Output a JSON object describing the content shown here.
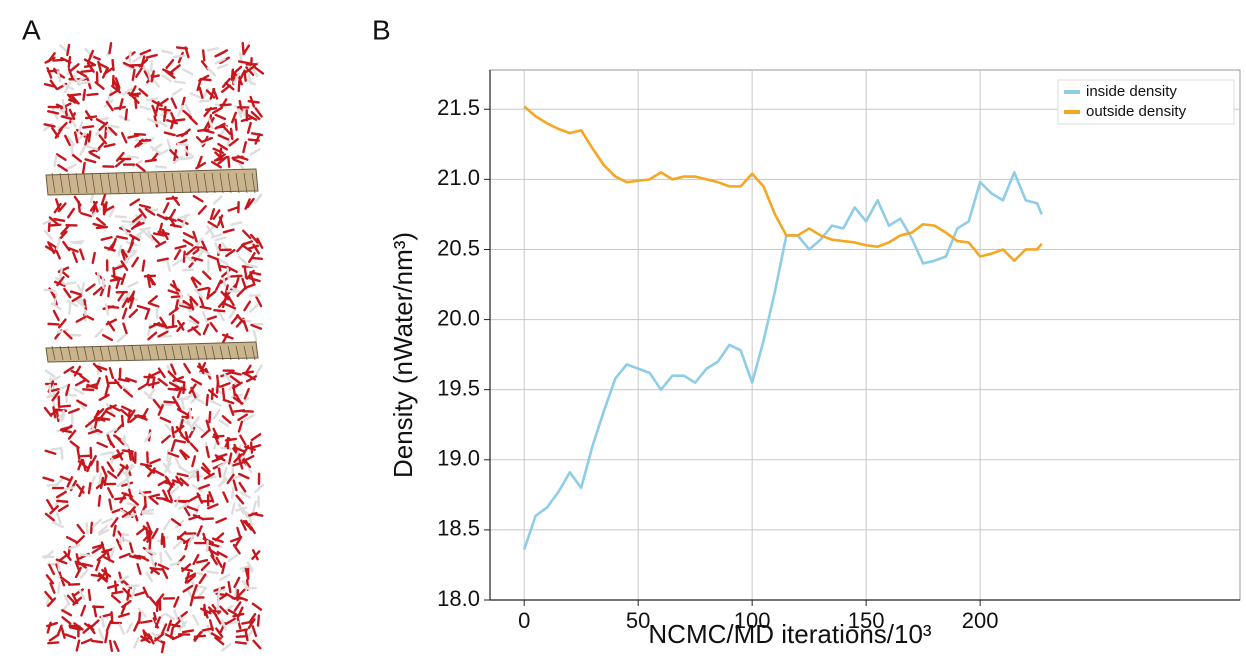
{
  "panel_labels": [
    "A",
    "B"
  ],
  "chart_data": {
    "type": "line",
    "xlabel": "NCMC/MD iterations/10³",
    "ylabel": "Density (nWater/nm³)",
    "x": [
      0,
      5,
      10,
      15,
      20,
      25,
      30,
      35,
      40,
      45,
      50,
      55,
      60,
      65,
      70,
      75,
      80,
      85,
      90,
      95,
      100,
      105,
      110,
      115,
      120,
      125,
      130,
      135,
      140,
      145,
      150,
      155,
      160,
      165,
      170,
      175,
      180,
      185,
      190,
      195,
      200,
      205,
      210,
      215,
      220,
      225,
      227
    ],
    "series": [
      {
        "name": "inside density",
        "color": "#8ecde8",
        "values": [
          18.36,
          18.6,
          18.66,
          18.77,
          18.91,
          18.8,
          19.1,
          19.35,
          19.58,
          19.68,
          19.65,
          19.62,
          19.5,
          19.6,
          19.6,
          19.55,
          19.65,
          19.7,
          19.82,
          19.78,
          19.55,
          19.85,
          20.2,
          20.6,
          20.6,
          20.5,
          20.57,
          20.67,
          20.65,
          20.8,
          20.7,
          20.85,
          20.67,
          20.72,
          20.58,
          20.4,
          20.42,
          20.45,
          20.65,
          20.7,
          20.98,
          20.9,
          20.85,
          21.05,
          20.85,
          20.83,
          20.75
        ]
      },
      {
        "name": "outside density",
        "color": "#f5a623",
        "values": [
          21.52,
          21.45,
          21.4,
          21.36,
          21.33,
          21.35,
          21.22,
          21.1,
          21.02,
          20.98,
          20.99,
          21.0,
          21.05,
          21.0,
          21.02,
          21.02,
          21.0,
          20.98,
          20.95,
          20.95,
          21.04,
          20.95,
          20.75,
          20.6,
          20.6,
          20.65,
          20.6,
          20.57,
          20.56,
          20.55,
          20.53,
          20.52,
          20.55,
          20.6,
          20.62,
          20.68,
          20.67,
          20.62,
          20.56,
          20.55,
          20.45,
          20.47,
          20.5,
          20.42,
          20.5,
          20.5,
          20.54
        ]
      }
    ],
    "xlim": [
      -15,
      314
    ],
    "ylim": [
      18.0,
      21.78
    ],
    "xticks": [
      0,
      50,
      100,
      150,
      200
    ],
    "yticks": [
      {
        "value": 18,
        "label": "18.0"
      },
      18.5,
      {
        "value": 19,
        "label": "19.0"
      },
      19.5,
      {
        "value": 20,
        "label": "20.0"
      },
      20.5,
      {
        "value": 21,
        "label": "21.0"
      },
      21.5
    ],
    "grid": true,
    "legend": "upper right"
  }
}
